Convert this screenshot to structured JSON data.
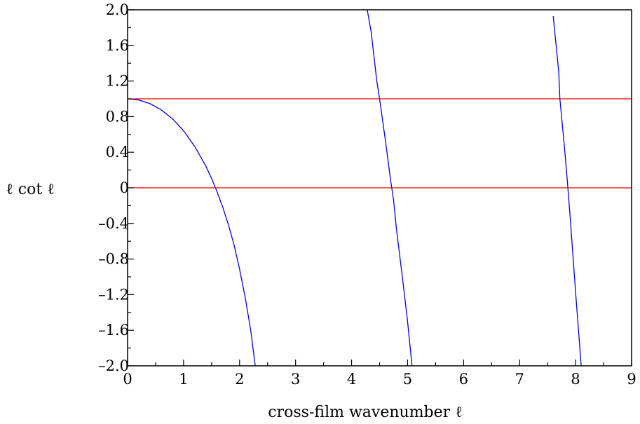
{
  "chart_data": {
    "type": "line",
    "xlabel": "cross-film wavenumber ℓ",
    "ylabel": "ℓ cot ℓ",
    "xlim": [
      0,
      9
    ],
    "ylim": [
      -2.0,
      2.0
    ],
    "grid": false,
    "x_ticks": [
      0,
      1,
      2,
      3,
      4,
      5,
      6,
      7,
      8,
      9
    ],
    "x_tick_labels": [
      "0",
      "1",
      "2",
      "3",
      "4",
      "5",
      "6",
      "7",
      "8",
      "9"
    ],
    "y_ticks": [
      2.0,
      1.6,
      1.2,
      0.8,
      0.4,
      0,
      -0.4,
      -0.8,
      -1.2,
      -1.6,
      -2.0
    ],
    "y_tick_labels": [
      "2.0",
      "1.6",
      "1.2",
      "0.8",
      "0.4",
      "0",
      "–0.4",
      "–0.8",
      "–1.2",
      "–1.6",
      "–2.0"
    ],
    "series": [
      {
        "color": "#0000ee",
        "segments": [
          {
            "x": [
              0,
              0.2,
              0.4,
              0.6,
              0.8,
              1.0,
              1.2,
              1.4,
              1.5,
              1.6,
              1.7,
              1.8,
              1.9,
              2.0,
              2.1,
              2.2,
              2.28
            ],
            "y": [
              1.0,
              0.987,
              0.946,
              0.876,
              0.777,
              0.642,
              0.463,
              0.242,
              0.106,
              -0.047,
              -0.219,
              -0.413,
              -0.638,
              -0.915,
              -1.23,
              -1.608,
              -2.0
            ]
          },
          {
            "x": [
              4.28,
              4.35,
              4.45,
              4.5,
              4.6,
              4.7,
              4.75,
              4.8,
              4.9,
              5.0,
              5.08
            ],
            "y": [
              2.0,
              1.75,
              1.2,
              1.0,
              0.55,
              0.07,
              -0.14,
              -0.46,
              -0.97,
              -1.5,
              -2.0
            ]
          },
          {
            "x": [
              7.6,
              7.7,
              7.72,
              7.8,
              7.85,
              7.9,
              8.0,
              8.1
            ],
            "y": [
              1.93,
              1.3,
              1.0,
              0.47,
              0.1,
              -0.3,
              -1.17,
              -2.0
            ]
          }
        ]
      },
      {
        "color": "#ee0000",
        "segments": [
          {
            "x": [
              0,
              9
            ],
            "y": [
              1,
              1
            ]
          },
          {
            "x": [
              0,
              9
            ],
            "y": [
              0,
              0
            ]
          }
        ]
      }
    ]
  }
}
